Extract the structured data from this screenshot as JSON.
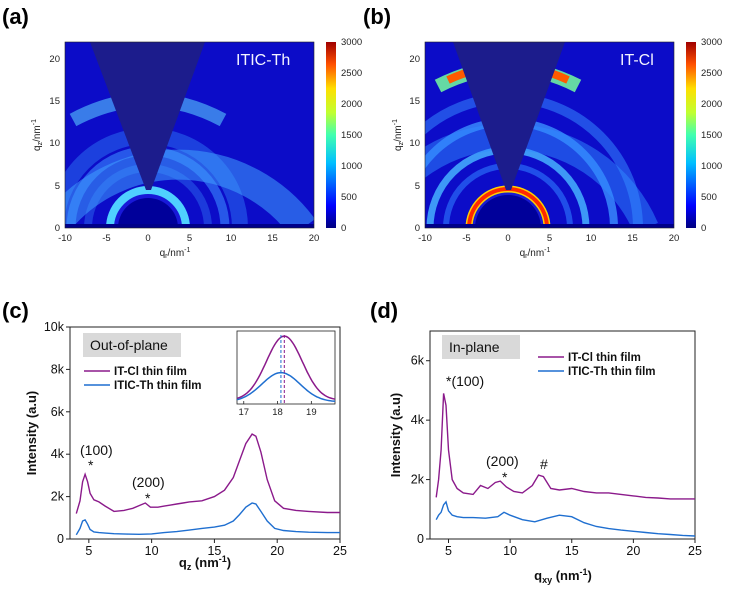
{
  "panels": {
    "a": {
      "letter": "(a)",
      "title": "ITIC-Th",
      "xlabel": "q",
      "xlabel_sub": "r",
      "xlabel_unit": "/nm",
      "xlabel_sup": "-1",
      "ylabel": "q",
      "ylabel_sub": "z",
      "ylabel_unit": "/nm",
      "ylabel_sup": "-1",
      "xticks": [
        "-10",
        "-5",
        "0",
        "5",
        "10",
        "15",
        "20"
      ],
      "yticks": [
        "0",
        "5",
        "10",
        "15",
        "20"
      ],
      "colorbar_ticks": [
        "0",
        "500",
        "1000",
        "1500",
        "2000",
        "2500",
        "3000"
      ]
    },
    "b": {
      "letter": "(b)",
      "title": "IT-Cl",
      "xlabel": "q",
      "xlabel_sub": "r",
      "xlabel_unit": "/nm",
      "xlabel_sup": "-1",
      "ylabel": "q",
      "ylabel_sub": "z",
      "ylabel_unit": "/nm",
      "ylabel_sup": "-1",
      "xticks": [
        "-10",
        "-5",
        "0",
        "5",
        "10",
        "15",
        "20"
      ],
      "yticks": [
        "0",
        "5",
        "10",
        "15",
        "20"
      ],
      "colorbar_ticks": [
        "0",
        "500",
        "1000",
        "1500",
        "2000",
        "2500",
        "3000"
      ]
    },
    "c": {
      "letter": "(c)",
      "box_label": "Out-of-plane",
      "xlabel": "q",
      "xlabel_sub": "z",
      "xlabel_unit": " (nm",
      "xlabel_sup": "-1",
      "xlabel_close": ")",
      "ylabel": "Intensity (a.u)",
      "xticks": [
        "5",
        "10",
        "15",
        "20",
        "25"
      ],
      "yticks": [
        "0",
        "2k",
        "4k",
        "6k",
        "8k",
        "10k"
      ],
      "inset_xticks": [
        "17",
        "18",
        "19"
      ],
      "annotations": [
        {
          "text": "(100)"
        },
        {
          "text": "*"
        },
        {
          "text": "(200)"
        },
        {
          "text": "*"
        }
      ],
      "legend": [
        "IT-Cl thin film",
        "ITIC-Th thin film"
      ]
    },
    "d": {
      "letter": "(d)",
      "box_label": "In-plane",
      "xlabel": "q",
      "xlabel_sub": "xy",
      "xlabel_unit": " (nm",
      "xlabel_sup": "-1",
      "xlabel_close": ")",
      "ylabel": "Intensity (a.u)",
      "xticks": [
        "5",
        "10",
        "15",
        "20",
        "25"
      ],
      "yticks": [
        "0",
        "2k",
        "4k",
        "6k"
      ],
      "annotations": [
        {
          "text": "*(100)"
        },
        {
          "text": "(200)"
        },
        {
          "text": "*"
        },
        {
          "text": "#"
        }
      ],
      "legend": [
        "IT-Cl thin film",
        "ITIC-Th thin film"
      ]
    }
  },
  "colors": {
    "it_cl": "#8b1a8b",
    "itic_th": "#1f6fd0",
    "inset_dash_purple": "#8b1a8b",
    "inset_dash_blue": "#1f6fd0",
    "box_fill": "#d9d9d9"
  },
  "chart_data": [
    {
      "panel": "a",
      "type": "heatmap",
      "title": "ITIC-Th",
      "xlabel": "qr/nm-1",
      "ylabel": "qz/nm-1",
      "xlim": [
        -10,
        20
      ],
      "ylim": [
        0,
        22
      ],
      "clim": [
        0,
        3000
      ],
      "colormap": "jet",
      "features": [
        {
          "q": 4.5,
          "intensity": 1100,
          "note": "ring near q≈4.5, strongest near qz≈2-4"
        },
        {
          "q": 9.5,
          "intensity": 500,
          "note": "faint ring"
        },
        {
          "q": 13,
          "intensity": 450,
          "note": "faint ring"
        },
        {
          "q": 18,
          "intensity": 1300,
          "note": "broad arc, strongest near qz≈17-18"
        }
      ]
    },
    {
      "panel": "b",
      "type": "heatmap",
      "title": "IT-Cl",
      "xlabel": "qr/nm-1",
      "ylabel": "qz/nm-1",
      "xlim": [
        -10,
        20
      ],
      "ylim": [
        0,
        22
      ],
      "clim": [
        0,
        3000
      ],
      "colormap": "jet",
      "features": [
        {
          "q": 4.7,
          "intensity": 3000,
          "note": "sharp intense ring"
        },
        {
          "q": 9.3,
          "intensity": 800,
          "note": "ring"
        },
        {
          "q": 12.7,
          "intensity": 700,
          "note": "ring"
        },
        {
          "q": 18,
          "intensity": 2800,
          "note": "strong arc near qz≈17-18"
        }
      ]
    },
    {
      "panel": "c",
      "type": "line",
      "xlabel": "qz (nm-1)",
      "ylabel": "Intensity (a.u)",
      "xlim": [
        3.5,
        25
      ],
      "ylim": [
        0,
        10000
      ],
      "series": [
        {
          "name": "IT-Cl thin film",
          "x": [
            4.0,
            4.3,
            4.5,
            4.7,
            4.9,
            5.1,
            5.4,
            5.8,
            6.3,
            7,
            7.8,
            8.5,
            9.1,
            9.5,
            9.9,
            10.5,
            11,
            11.5,
            12,
            12.5,
            13,
            14,
            15,
            15.8,
            16.5,
            17,
            17.5,
            18,
            18.3,
            18.7,
            19.2,
            19.8,
            20.5,
            21.5,
            22.5,
            24,
            25
          ],
          "y": [
            1200,
            1800,
            2700,
            3050,
            2700,
            2150,
            1850,
            1750,
            1550,
            1300,
            1350,
            1450,
            1600,
            1700,
            1500,
            1500,
            1550,
            1600,
            1650,
            1700,
            1750,
            1800,
            2000,
            2300,
            2900,
            3700,
            4500,
            4950,
            4850,
            4100,
            2800,
            1800,
            1450,
            1350,
            1300,
            1250,
            1250
          ]
        },
        {
          "name": "ITIC-Th thin film",
          "x": [
            4.0,
            4.3,
            4.5,
            4.7,
            4.9,
            5.1,
            5.4,
            5.8,
            6.3,
            7,
            8,
            9,
            10,
            11,
            12,
            13,
            14,
            15,
            15.8,
            16.5,
            17,
            17.5,
            18,
            18.3,
            18.7,
            19.2,
            19.8,
            20.5,
            21.5,
            22.5,
            24,
            25
          ],
          "y": [
            200,
            500,
            850,
            900,
            700,
            450,
            330,
            300,
            280,
            250,
            230,
            220,
            240,
            300,
            350,
            420,
            500,
            560,
            650,
            850,
            1150,
            1500,
            1700,
            1650,
            1300,
            850,
            500,
            400,
            350,
            320,
            300,
            300
          ]
        }
      ],
      "inset": {
        "xlim": [
          16.8,
          19.7
        ],
        "xticks": [
          17,
          18,
          19
        ],
        "peak_it_cl": 18.2,
        "peak_itic_th": 18.1
      }
    },
    {
      "panel": "d",
      "type": "line",
      "xlabel": "qxy (nm-1)",
      "ylabel": "Intensity (a.u)",
      "xlim": [
        3.5,
        25
      ],
      "ylim": [
        0,
        7000
      ],
      "series": [
        {
          "name": "IT-Cl thin film",
          "x": [
            4.0,
            4.2,
            4.4,
            4.6,
            4.8,
            5.0,
            5.3,
            5.7,
            6.2,
            7,
            7.6,
            8.2,
            8.8,
            9.2,
            9.7,
            10.3,
            11,
            11.8,
            12.3,
            12.7,
            13.3,
            14,
            15,
            16,
            17,
            18,
            19,
            20,
            21,
            22,
            23,
            24,
            25
          ],
          "y": [
            1400,
            2000,
            3000,
            4900,
            4500,
            3000,
            2000,
            1700,
            1550,
            1500,
            1800,
            1700,
            1900,
            1950,
            1750,
            1600,
            1550,
            1800,
            2150,
            2100,
            1700,
            1650,
            1700,
            1600,
            1550,
            1550,
            1500,
            1450,
            1400,
            1380,
            1350,
            1350,
            1350
          ]
        },
        {
          "name": "ITIC-Th thin film",
          "x": [
            4.0,
            4.2,
            4.4,
            4.6,
            4.8,
            5.0,
            5.3,
            5.7,
            6.2,
            7,
            8,
            9,
            9.5,
            10,
            11,
            12,
            13,
            14,
            15,
            16,
            17,
            18,
            19,
            20,
            21,
            22,
            23,
            24,
            25
          ],
          "y": [
            650,
            800,
            900,
            1150,
            1250,
            950,
            800,
            750,
            720,
            720,
            700,
            750,
            900,
            800,
            650,
            580,
            700,
            800,
            750,
            550,
            420,
            350,
            300,
            260,
            220,
            180,
            150,
            120,
            100
          ]
        }
      ]
    }
  ]
}
